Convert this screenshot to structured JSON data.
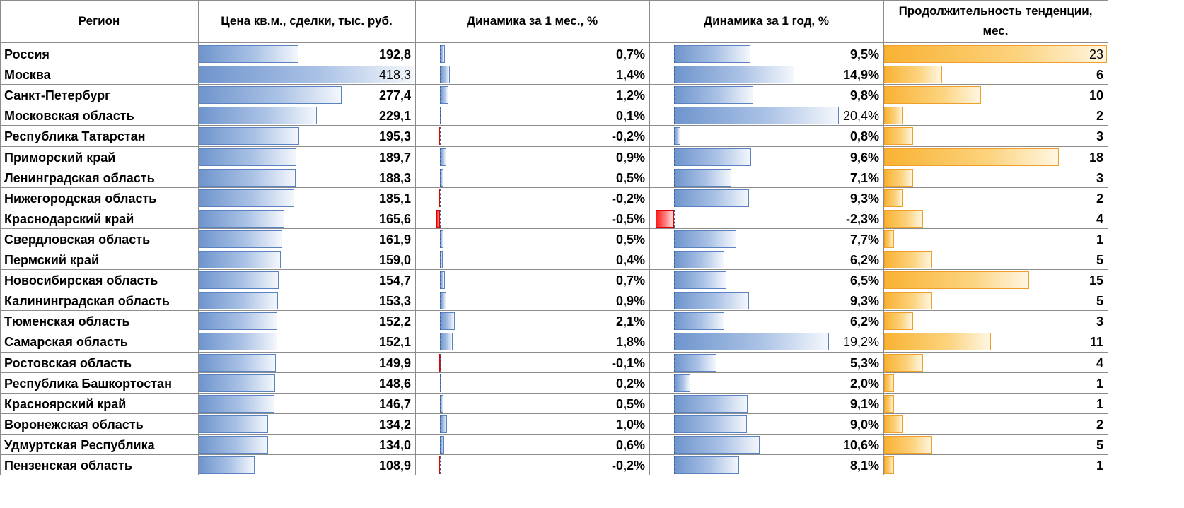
{
  "headers": [
    "Регион",
    "Цена кв.м., сделки, тыс. руб.",
    "Динамика за 1 мес., %",
    "Динамика за 1 год, %",
    "Продолжительность тенденции, мес."
  ],
  "colors": {
    "price_bar": "#6f95cd",
    "month_bar_positive": "#6f95cd",
    "month_bar_negative": "#ff1a1a",
    "year_bar_positive": "#6f95cd",
    "year_bar_negative": "#ff1a1a",
    "duration_bar": "#f9b233",
    "grid": "#8c8c8c"
  },
  "chart_data": {
    "type": "table",
    "columns": [
      "Регион",
      "Цена кв.м., сделки, тыс. руб.",
      "Динамика за 1 мес., %",
      "Динамика за 1 год, %",
      "Продолжительность тенденции, мес."
    ],
    "rows": [
      {
        "region": "Россия",
        "price": 192.8,
        "price_label": "192,8",
        "month": 0.7,
        "month_label": "0,7%",
        "year": 9.5,
        "year_label": "9,5%",
        "duration": 23,
        "duration_label": "23"
      },
      {
        "region": "Москва",
        "price": 418.3,
        "price_label": "418,3",
        "month": 1.4,
        "month_label": "1,4%",
        "year": 14.9,
        "year_label": "14,9%",
        "duration": 6,
        "duration_label": "6"
      },
      {
        "region": "Санкт-Петербург",
        "price": 277.4,
        "price_label": "277,4",
        "month": 1.2,
        "month_label": "1,2%",
        "year": 9.8,
        "year_label": "9,8%",
        "duration": 10,
        "duration_label": "10"
      },
      {
        "region": "Московская область",
        "price": 229.1,
        "price_label": "229,1",
        "month": 0.1,
        "month_label": "0,1%",
        "year": 20.4,
        "year_label": "20,4%",
        "duration": 2,
        "duration_label": "2"
      },
      {
        "region": "Республика Татарстан",
        "price": 195.3,
        "price_label": "195,3",
        "month": -0.2,
        "month_label": "-0,2%",
        "year": 0.8,
        "year_label": "0,8%",
        "duration": 3,
        "duration_label": "3"
      },
      {
        "region": "Приморский край",
        "price": 189.7,
        "price_label": "189,7",
        "month": 0.9,
        "month_label": "0,9%",
        "year": 9.6,
        "year_label": "9,6%",
        "duration": 18,
        "duration_label": "18"
      },
      {
        "region": "Ленинградская область",
        "price": 188.3,
        "price_label": "188,3",
        "month": 0.5,
        "month_label": "0,5%",
        "year": 7.1,
        "year_label": "7,1%",
        "duration": 3,
        "duration_label": "3"
      },
      {
        "region": "Нижегородская область",
        "price": 185.1,
        "price_label": "185,1",
        "month": -0.2,
        "month_label": "-0,2%",
        "year": 9.3,
        "year_label": "9,3%",
        "duration": 2,
        "duration_label": "2"
      },
      {
        "region": "Краснодарский край",
        "price": 165.6,
        "price_label": "165,6",
        "month": -0.5,
        "month_label": "-0,5%",
        "year": -2.3,
        "year_label": "-2,3%",
        "duration": 4,
        "duration_label": "4"
      },
      {
        "region": "Свердловская область",
        "price": 161.9,
        "price_label": "161,9",
        "month": 0.5,
        "month_label": "0,5%",
        "year": 7.7,
        "year_label": "7,7%",
        "duration": 1,
        "duration_label": "1"
      },
      {
        "region": "Пермский край",
        "price": 159.0,
        "price_label": "159,0",
        "month": 0.4,
        "month_label": "0,4%",
        "year": 6.2,
        "year_label": "6,2%",
        "duration": 5,
        "duration_label": "5"
      },
      {
        "region": "Новосибирская область",
        "price": 154.7,
        "price_label": "154,7",
        "month": 0.7,
        "month_label": "0,7%",
        "year": 6.5,
        "year_label": "6,5%",
        "duration": 15,
        "duration_label": "15"
      },
      {
        "region": "Калининградская область",
        "price": 153.3,
        "price_label": "153,3",
        "month": 0.9,
        "month_label": "0,9%",
        "year": 9.3,
        "year_label": "9,3%",
        "duration": 5,
        "duration_label": "5"
      },
      {
        "region": "Тюменская область",
        "price": 152.2,
        "price_label": "152,2",
        "month": 2.1,
        "month_label": "2,1%",
        "year": 6.2,
        "year_label": "6,2%",
        "duration": 3,
        "duration_label": "3"
      },
      {
        "region": "Самарская область",
        "price": 152.1,
        "price_label": "152,1",
        "month": 1.8,
        "month_label": "1,8%",
        "year": 19.2,
        "year_label": "19,2%",
        "duration": 11,
        "duration_label": "11"
      },
      {
        "region": "Ростовская область",
        "price": 149.9,
        "price_label": "149,9",
        "month": -0.1,
        "month_label": "-0,1%",
        "year": 5.3,
        "year_label": "5,3%",
        "duration": 4,
        "duration_label": "4"
      },
      {
        "region": "Республика Башкортостан",
        "price": 148.6,
        "price_label": "148,6",
        "month": 0.2,
        "month_label": "0,2%",
        "year": 2.0,
        "year_label": "2,0%",
        "duration": 1,
        "duration_label": "1"
      },
      {
        "region": "Красноярский край",
        "price": 146.7,
        "price_label": "146,7",
        "month": 0.5,
        "month_label": "0,5%",
        "year": 9.1,
        "year_label": "9,1%",
        "duration": 1,
        "duration_label": "1"
      },
      {
        "region": "Воронежская область",
        "price": 134.2,
        "price_label": "134,2",
        "month": 1.0,
        "month_label": "1,0%",
        "year": 9.0,
        "year_label": "9,0%",
        "duration": 2,
        "duration_label": "2"
      },
      {
        "region": "Удмуртская Республика",
        "price": 134.0,
        "price_label": "134,0",
        "month": 0.6,
        "month_label": "0,6%",
        "year": 10.6,
        "year_label": "10,6%",
        "duration": 5,
        "duration_label": "5"
      },
      {
        "region": "Пензенская область",
        "price": 108.9,
        "price_label": "108,9",
        "month": -0.2,
        "month_label": "-0,2%",
        "year": 8.1,
        "year_label": "8,1%",
        "duration": 1,
        "duration_label": "1"
      }
    ]
  }
}
